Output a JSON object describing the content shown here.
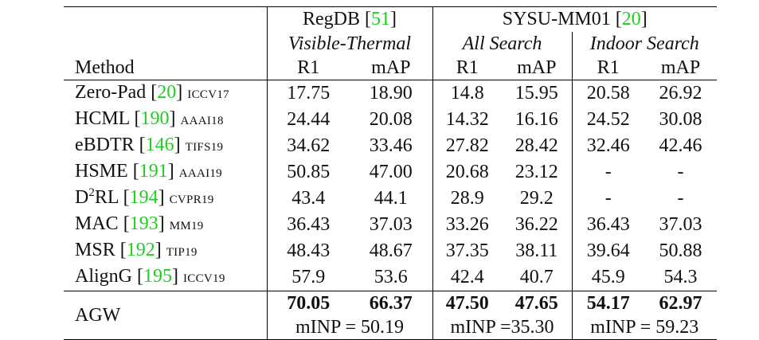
{
  "header": {
    "method": "Method",
    "groups": [
      {
        "name": "RegDB",
        "cite": "51"
      },
      {
        "name": "SYSU-MM01",
        "cite": "20"
      }
    ],
    "subheads": [
      "Visible-Thermal",
      "All Search",
      "Indoor Search"
    ],
    "metrics": [
      "R1",
      "mAP",
      "R1",
      "mAP",
      "R1",
      "mAP"
    ]
  },
  "rows": [
    {
      "name": "Zero-Pad",
      "cite": "20",
      "venue": "ICCV17",
      "values": [
        "17.75",
        "18.90",
        "14.8",
        "15.95",
        "20.58",
        "26.92"
      ]
    },
    {
      "name": "HCML",
      "cite": "190",
      "venue": "AAAI18",
      "values": [
        "24.44",
        "20.08",
        "14.32",
        "16.16",
        "24.52",
        "30.08"
      ]
    },
    {
      "name": "eBDTR",
      "cite": "146",
      "venue": "TIFS19",
      "values": [
        "34.62",
        "33.46",
        "27.82",
        "28.42",
        "32.46",
        "42.46"
      ]
    },
    {
      "name": "HSME",
      "cite": "191",
      "venue": "AAAI19",
      "values": [
        "50.85",
        "47.00",
        "20.68",
        "23.12",
        "-",
        "-"
      ]
    },
    {
      "name": "D",
      "sup": "2",
      "name_rest": "RL",
      "cite": "194",
      "venue": "CVPR19",
      "values": [
        "43.4",
        "44.1",
        "28.9",
        "29.2",
        "-",
        "-"
      ]
    },
    {
      "name": "MAC",
      "cite": "193",
      "venue": "MM19",
      "values": [
        "36.43",
        "37.03",
        "33.26",
        "36.22",
        "36.43",
        "37.03"
      ]
    },
    {
      "name": "MSR",
      "cite": "192",
      "venue": "TIP19",
      "values": [
        "48.43",
        "48.67",
        "37.35",
        "38.11",
        "39.64",
        "50.88"
      ]
    },
    {
      "name": "AlignG",
      "cite": "195",
      "venue": "ICCV19",
      "values": [
        "57.9",
        "53.6",
        "42.4",
        "40.7",
        "45.9",
        "54.3"
      ]
    }
  ],
  "agw": {
    "name": "AGW",
    "values": [
      "70.05",
      "66.37",
      "47.50",
      "47.65",
      "54.17",
      "62.97"
    ],
    "minp": [
      "mINP = 50.19",
      "mINP =35.30",
      "mINP = 59.23"
    ]
  }
}
